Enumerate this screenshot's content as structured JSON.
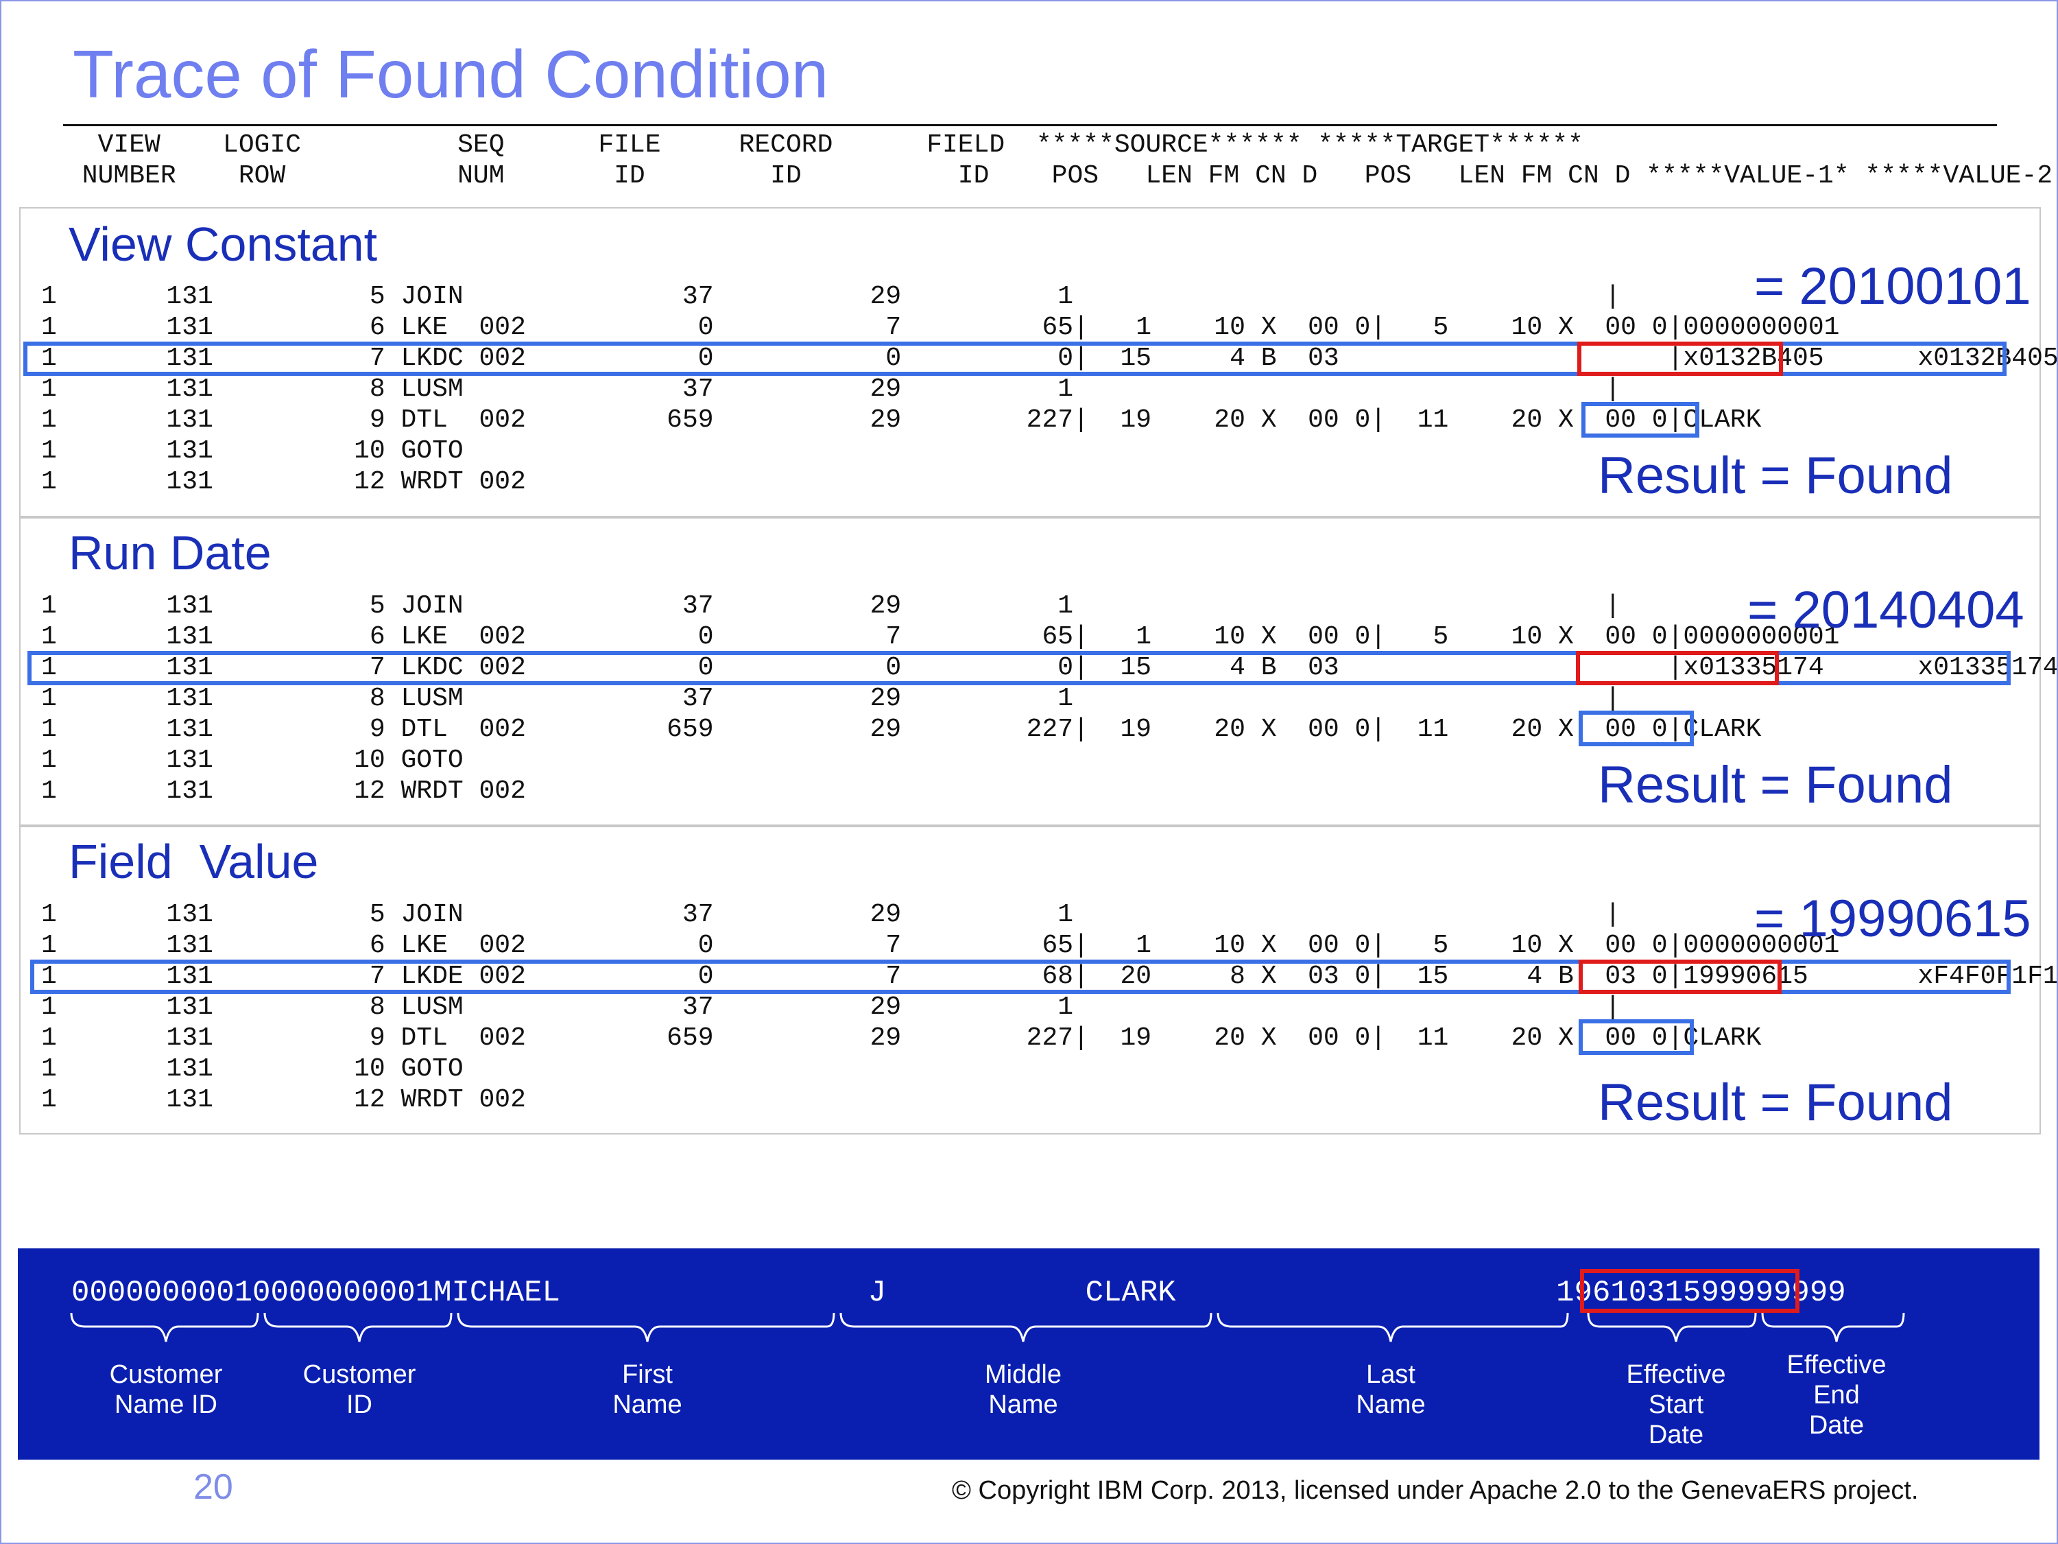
{
  "title": "Trace of Found Condition",
  "header": {
    "line1": "  VIEW    LOGIC          SEQ      FILE     RECORD      FIELD  *****SOURCE****** *****TARGET******",
    "line2": " NUMBER    ROW           NUM       ID        ID          ID    POS   LEN FM CN D   POS   LEN FM CN D *****VALUE-1* *****VALUE-2"
  },
  "panels": [
    {
      "title": "View Constant",
      "rows": [
        "1       131          5 JOIN              37          29          1                                  |",
        "1       131          6 LKE  002           0           7         65|   1    10 X  00 0|   5    10 X  00 0|0000000001",
        "1       131          7 LKDC 002           0           0          0|  15     4 B  03                     |x0132B405      x0132B405",
        "1       131          8 LUSM              37          29          1                                  |",
        "1       131          9 DTL  002         659          29        227|  19    20 X  00 0|  11    20 X  00 0|CLARK",
        "1       131         10 GOTO",
        "1       131         12 WRDT 002"
      ],
      "value_annotation": "= 20100101",
      "result": "Result = Found"
    },
    {
      "title": "Run Date",
      "rows": [
        "1       131          5 JOIN              37          29          1                                  |",
        "1       131          6 LKE  002           0           7         65|   1    10 X  00 0|   5    10 X  00 0|0000000001",
        "1       131          7 LKDC 002           0           0          0|  15     4 B  03                     |x01335174      x01335174",
        "1       131          8 LUSM              37          29          1                                  |",
        "1       131          9 DTL  002         659          29        227|  19    20 X  00 0|  11    20 X  00 0|CLARK",
        "1       131         10 GOTO",
        "1       131         12 WRDT 002"
      ],
      "value_annotation": "= 20140404",
      "result": "Result = Found"
    },
    {
      "title": "Field  Value",
      "rows": [
        "1       131          5 JOIN              37          29          1                                  |",
        "1       131          6 LKE  002           0           7         65|   1    10 X  00 0|   5    10 X  00 0|0000000001",
        "1       131          7 LKDE 002           0           7         68|  20     8 X  03 0|  15     4 B  03 0|19990615       xF4F0F1F1",
        "1       131          8 LUSM              37          29          1                                  |",
        "1       131          9 DTL  002         659          29        227|  19    20 X  00 0|  11    20 X  00 0|CLARK",
        "1       131         10 GOTO",
        "1       131         12 WRDT 002"
      ],
      "value_annotation": "= 19990615",
      "result": "Result = Found"
    }
  ],
  "record": {
    "text": "00000000010000000001MICHAEL                 J           CLARK                     1961031599999999",
    "fields": [
      {
        "label_lines": [
          "Customer",
          "Name ID"
        ]
      },
      {
        "label_lines": [
          "Customer",
          "ID"
        ]
      },
      {
        "label_lines": [
          "First",
          "Name"
        ]
      },
      {
        "label_lines": [
          "Middle",
          "Name"
        ]
      },
      {
        "label_lines": [
          "Last",
          "Name"
        ]
      },
      {
        "label_lines": [
          "Effective",
          "Start",
          "Date"
        ]
      },
      {
        "label_lines": [
          "Effective",
          "End",
          "Date"
        ]
      }
    ]
  },
  "page_number": "20",
  "copyright": "© Copyright IBM Corp. 2013, licensed under Apache 2.0 to the GenevaERS project.",
  "colors": {
    "title": "#6f7ff0",
    "annotation": "#1a2fb8",
    "highlight_blue": "#3a6fe6",
    "highlight_red": "#e01b1b",
    "banner": "#0a1fb0"
  }
}
